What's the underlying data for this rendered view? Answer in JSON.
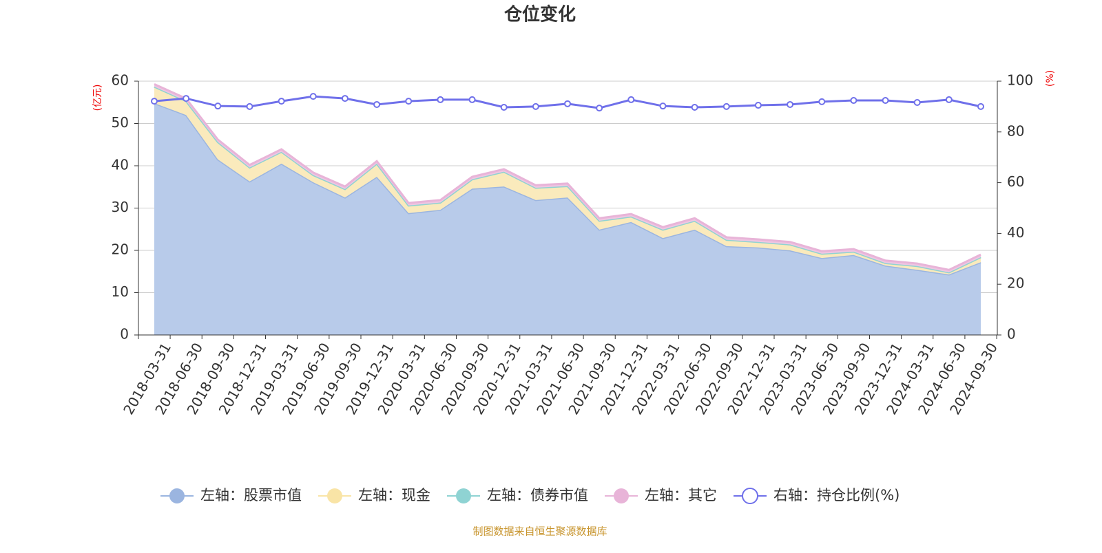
{
  "chart_data": {
    "type": "stacked-area-line",
    "title": "仓位变化",
    "y_label": "(亿元)",
    "y2_label": "(%)",
    "source": "制图数据来自恒生聚源数据库",
    "categories": [
      "2018-03-31",
      "2018-06-30",
      "2018-09-30",
      "2018-12-31",
      "2019-03-31",
      "2019-06-30",
      "2019-09-30",
      "2019-12-31",
      "2020-03-31",
      "2020-06-30",
      "2020-09-30",
      "2020-12-31",
      "2021-03-31",
      "2021-06-30",
      "2021-09-30",
      "2021-12-31",
      "2022-03-31",
      "2022-06-30",
      "2022-09-30",
      "2022-12-31",
      "2023-03-31",
      "2023-06-30",
      "2023-09-30",
      "2023-12-31",
      "2024-03-31",
      "2024-06-30",
      "2024-09-30"
    ],
    "ylim": [
      0,
      60
    ],
    "yticks": [
      0,
      10,
      20,
      30,
      40,
      50,
      60
    ],
    "y2lim": [
      0,
      100
    ],
    "y2ticks": [
      0,
      20,
      40,
      60,
      80,
      100
    ],
    "grid": true,
    "series": [
      {
        "name": "左轴：股票市值",
        "color": "#9bb5e0",
        "fill": "#b8cbea",
        "axis": "y",
        "stack": true,
        "values": [
          54.8,
          52.0,
          41.5,
          36.3,
          40.5,
          36.1,
          32.5,
          37.4,
          28.8,
          29.6,
          34.6,
          35.1,
          31.9,
          32.5,
          24.9,
          26.7,
          22.9,
          24.9,
          21.0,
          20.7,
          20.0,
          18.2,
          18.9,
          16.4,
          15.4,
          14.3,
          17.2
        ]
      },
      {
        "name": "左轴：现金",
        "color": "#f9e4a6",
        "fill": "#faeabc",
        "axis": "y",
        "stack": true,
        "values": [
          3.9,
          3.3,
          4.1,
          3.3,
          2.8,
          1.7,
          2.0,
          3.1,
          1.8,
          1.7,
          2.2,
          3.5,
          2.9,
          2.7,
          2.1,
          1.3,
          2.0,
          2.1,
          1.5,
          1.3,
          1.4,
          1.0,
          0.8,
          0.6,
          0.9,
          0.5,
          1.2
        ]
      },
      {
        "name": "左轴：债券市值",
        "color": "#8fd3d3",
        "fill": "#aadddd",
        "axis": "y",
        "stack": true,
        "values": [
          0,
          0,
          0,
          0,
          0,
          0,
          0,
          0,
          0,
          0,
          0,
          0,
          0,
          0,
          0,
          0,
          0,
          0,
          0,
          0,
          0,
          0,
          0,
          0,
          0,
          0,
          0
        ]
      },
      {
        "name": "左轴：其它",
        "color": "#e8b4d8",
        "fill": "#efc6e2",
        "axis": "y",
        "stack": true,
        "values": [
          0.6,
          0.6,
          0.6,
          0.6,
          0.6,
          0.6,
          0.6,
          0.6,
          0.6,
          0.6,
          0.6,
          0.6,
          0.6,
          0.6,
          0.6,
          0.6,
          0.6,
          0.6,
          0.6,
          0.6,
          0.6,
          0.6,
          0.6,
          0.6,
          0.6,
          0.6,
          0.6
        ]
      },
      {
        "name": "右轴：持仓比例(%)",
        "color": "#6f70ea",
        "axis": "y2",
        "stack": false,
        "values": [
          92.1,
          93.2,
          90.2,
          90.0,
          92.1,
          94.0,
          93.2,
          90.8,
          92.1,
          92.7,
          92.7,
          89.7,
          90.0,
          91.1,
          89.4,
          92.7,
          90.2,
          89.7,
          90.0,
          90.5,
          90.8,
          91.9,
          92.4,
          92.4,
          91.6,
          92.7,
          90.0
        ]
      }
    ]
  }
}
